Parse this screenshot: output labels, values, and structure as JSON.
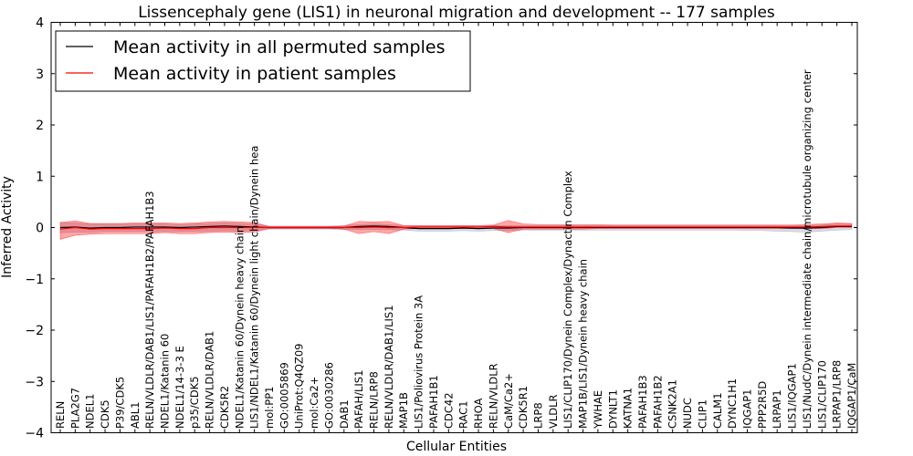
{
  "chart_data": {
    "type": "line",
    "title": "Lissencephaly gene (LIS1) in neuronal migration and development -- 177 samples",
    "xlabel": "Cellular Entities",
    "ylabel": "Inferred Activity",
    "ylim": [
      -4,
      4
    ],
    "yticks": [
      4,
      3,
      2,
      1,
      0,
      -1,
      -2,
      -3,
      -4
    ],
    "ytick_labels": [
      "4",
      "3",
      "2",
      "1",
      "0",
      "−1",
      "−2",
      "−3",
      "−4"
    ],
    "grid": false,
    "legend_position": "top-left",
    "categories": [
      "RELN",
      "PLA2G7",
      "NDEL1",
      "CDK5",
      "P39/CDK5",
      "ABL1",
      "RELN/VLDLR/DAB1/LIS1/PAFAH1B2/PAFAH1B3",
      "NDEL1/Katanin 60",
      "NDEL1/14-3-3 E",
      "p35/CDK5",
      "RELN/VLDLR/DAB1",
      "CDK5R2",
      "NDEL1/Katanin 60/Dynein heavy chain",
      "LIS1/NDEL1/Katanin 60/Dynein light chain/Dynein hea",
      "mol:PP1",
      "GO:0005869",
      "UniProt:Q4QZ09",
      "mol:Ca2+",
      "GO:0030286",
      "DAB1",
      "PAFAH/LIS1",
      "RELN/LRP8",
      "RELN/VLDLR/DAB1/LIS1",
      "MAP1B",
      "LIS1/Poliovirus Protein 3A",
      "PAFAH1B1",
      "CDC42",
      "RAC1",
      "RHOA",
      "RELN/VLDLR",
      "CaM/Ca2+",
      "CDK5R1",
      "LRP8",
      "VLDLR",
      "LIS1/CLIP170/Dynein Complex/Dynactin Complex",
      "MAP1B/LIS1/Dynein heavy chain",
      "YWHAE",
      "DYNLT1",
      "KATNA1",
      "PAFAH1B3",
      "PAFAH1B2",
      "CSNK2A1",
      "NUDC",
      "CLIP1",
      "CALM1",
      "DYNC1H1",
      "IQGAP1",
      "PPP2R5D",
      "LRPAP1",
      "LIS1/IQGAP1",
      "LIS1/NudC/Dynein intermediate chain/microtubule organizing center",
      "LIS1/CLIP170",
      "LRPAP1/LRP8",
      "IQGAP1/CaM"
    ],
    "series": [
      {
        "name": "Mean activity in all permuted samples",
        "color": "#000000",
        "values": [
          0.0,
          0.01,
          -0.01,
          0.0,
          0.0,
          0.01,
          0.01,
          0.01,
          0.0,
          0.01,
          0.02,
          0.03,
          0.02,
          0.01,
          0.0,
          0.0,
          0.0,
          0.0,
          0.0,
          0.0,
          0.02,
          0.03,
          0.02,
          0.0,
          -0.02,
          -0.02,
          -0.02,
          -0.01,
          -0.02,
          -0.01,
          -0.01,
          0.0,
          0.0,
          0.0,
          0.0,
          0.0,
          0.0,
          0.0,
          0.0,
          0.0,
          0.0,
          0.0,
          0.0,
          0.0,
          0.0,
          0.0,
          0.0,
          0.0,
          0.0,
          -0.01,
          -0.01,
          0.0,
          0.02,
          0.02
        ],
        "band_low": [
          -0.1,
          -0.09,
          -0.09,
          -0.08,
          -0.08,
          -0.08,
          -0.08,
          -0.08,
          -0.08,
          -0.08,
          -0.07,
          -0.06,
          -0.07,
          -0.06,
          -0.03,
          -0.03,
          -0.03,
          -0.03,
          -0.03,
          -0.04,
          -0.04,
          -0.04,
          -0.04,
          -0.05,
          -0.07,
          -0.07,
          -0.07,
          -0.06,
          -0.07,
          -0.06,
          -0.06,
          -0.05,
          -0.05,
          -0.05,
          -0.05,
          -0.05,
          -0.05,
          -0.05,
          -0.05,
          -0.05,
          -0.05,
          -0.05,
          -0.05,
          -0.05,
          -0.05,
          -0.05,
          -0.06,
          -0.06,
          -0.07,
          -0.08,
          -0.09,
          -0.07,
          -0.05,
          -0.04
        ],
        "band_high": [
          0.1,
          0.09,
          0.07,
          0.07,
          0.07,
          0.07,
          0.07,
          0.07,
          0.06,
          0.07,
          0.08,
          0.09,
          0.08,
          0.07,
          0.03,
          0.03,
          0.03,
          0.03,
          0.03,
          0.04,
          0.06,
          0.07,
          0.06,
          0.04,
          0.03,
          0.03,
          0.03,
          0.04,
          0.03,
          0.04,
          0.04,
          0.04,
          0.04,
          0.04,
          0.04,
          0.04,
          0.04,
          0.04,
          0.04,
          0.04,
          0.04,
          0.04,
          0.04,
          0.04,
          0.04,
          0.04,
          0.04,
          0.04,
          0.04,
          0.04,
          0.04,
          0.05,
          0.07,
          0.07
        ]
      },
      {
        "name": "Mean activity in patient samples",
        "color": "#ff0000",
        "values": [
          -0.03,
          0.0,
          -0.03,
          -0.02,
          -0.02,
          -0.02,
          -0.02,
          -0.01,
          -0.02,
          -0.02,
          0.0,
          0.0,
          0.0,
          0.0,
          0.0,
          0.0,
          0.0,
          0.0,
          0.0,
          0.0,
          0.0,
          0.01,
          0.0,
          0.0,
          0.01,
          0.01,
          0.01,
          0.01,
          0.01,
          0.02,
          0.01,
          0.01,
          0.01,
          0.01,
          0.01,
          0.01,
          0.01,
          0.01,
          0.01,
          0.01,
          0.01,
          0.01,
          0.01,
          0.01,
          0.01,
          0.01,
          0.01,
          0.01,
          0.01,
          0.01,
          0.01,
          0.02,
          0.03,
          0.03
        ],
        "band_low": [
          -0.23,
          -0.15,
          -0.13,
          -0.12,
          -0.12,
          -0.12,
          -0.12,
          -0.1,
          -0.12,
          -0.12,
          -0.1,
          -0.09,
          -0.1,
          -0.09,
          -0.02,
          -0.02,
          -0.02,
          -0.02,
          -0.02,
          -0.03,
          -0.12,
          -0.08,
          -0.12,
          -0.03,
          -0.02,
          -0.02,
          -0.02,
          -0.02,
          -0.02,
          -0.02,
          -0.1,
          -0.03,
          -0.03,
          -0.03,
          -0.03,
          -0.03,
          -0.02,
          -0.02,
          -0.02,
          -0.02,
          -0.02,
          -0.02,
          -0.02,
          -0.02,
          -0.02,
          -0.02,
          -0.02,
          -0.02,
          -0.02,
          -0.02,
          -0.02,
          -0.02,
          0.0,
          0.0
        ],
        "band_high": [
          0.1,
          0.13,
          0.08,
          0.08,
          0.08,
          0.09,
          0.09,
          0.09,
          0.08,
          0.09,
          0.11,
          0.12,
          0.11,
          0.1,
          0.02,
          0.02,
          0.02,
          0.02,
          0.02,
          0.03,
          0.12,
          0.11,
          0.12,
          0.04,
          0.04,
          0.04,
          0.04,
          0.04,
          0.04,
          0.05,
          0.14,
          0.07,
          0.06,
          0.06,
          0.06,
          0.06,
          0.06,
          0.05,
          0.05,
          0.05,
          0.05,
          0.05,
          0.05,
          0.05,
          0.05,
          0.05,
          0.05,
          0.05,
          0.05,
          0.05,
          0.06,
          0.07,
          0.09,
          0.08
        ]
      }
    ]
  }
}
